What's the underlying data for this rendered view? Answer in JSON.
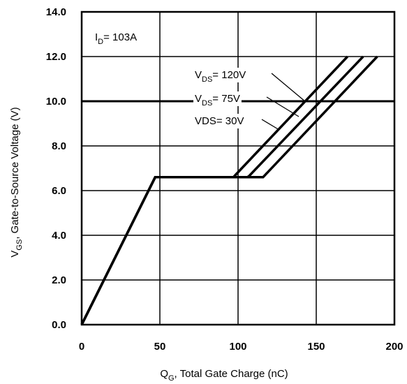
{
  "chart_data": {
    "type": "line",
    "xlabel": "Q_G, Total Gate Charge (nC)",
    "ylabel": "V_GS, Gate-to-Source Voltage (V)",
    "xlim": [
      0,
      200
    ],
    "ylim": [
      0,
      14
    ],
    "xticks": [
      "0",
      "50",
      "100",
      "150",
      "200"
    ],
    "yticks": [
      "0.0",
      "2.0",
      "4.0",
      "6.0",
      "8.0",
      "10.0",
      "12.0",
      "14.0"
    ],
    "grid": true,
    "condition": {
      "pre": "I",
      "sub": "D",
      "post": "= 103A"
    },
    "reference_line_y": 10,
    "series": [
      {
        "name": "V_DS= 120V",
        "x": [
          0,
          47,
          97,
          99,
          170
        ],
        "y": [
          0,
          6.6,
          6.6,
          6.75,
          12
        ]
      },
      {
        "name": "V_DS= 75V",
        "x": [
          0,
          47,
          106,
          107,
          180
        ],
        "y": [
          0,
          6.6,
          6.6,
          6.65,
          12
        ]
      },
      {
        "name": "VDS= 30V",
        "x": [
          0,
          47,
          115,
          116,
          189
        ],
        "y": [
          0,
          6.6,
          6.6,
          6.6,
          12
        ]
      }
    ],
    "labels": [
      {
        "pre": "V",
        "sub": "DS",
        "post": "= 120V"
      },
      {
        "pre": "V",
        "sub": "DS",
        "post": "= 75V"
      },
      {
        "pre": "VDS= 30V",
        "sub": "",
        "post": ""
      }
    ],
    "xlabel_parts": {
      "pre": "Q",
      "sub": "G",
      "post": ",  Total Gate Charge (nC)"
    },
    "ylabel_parts": {
      "pre": "V",
      "sub": "GS",
      "post": ", Gate-to-Source Voltage (V)"
    }
  }
}
